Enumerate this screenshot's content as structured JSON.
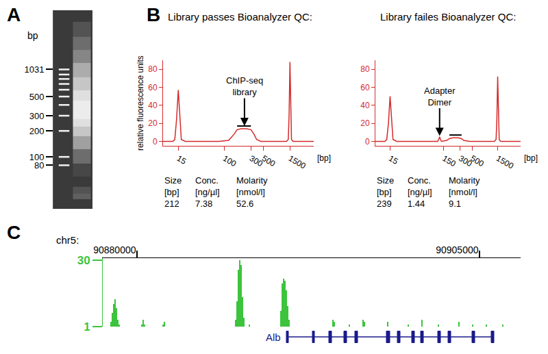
{
  "chart_data": [
    {
      "panel": "A",
      "type": "gel",
      "ylabel": "bp",
      "log": "y",
      "tick_labels": "y",
      "ylim": [
        25,
        5000
      ],
      "yticks": [
        1031,
        500,
        300,
        200,
        100,
        80
      ],
      "ladder": [
        1031,
        900,
        800,
        700,
        600,
        500,
        400,
        300,
        200,
        100,
        80
      ],
      "smear": {
        "bp": [
          30,
          35,
          40,
          50,
          70,
          100,
          150,
          200,
          250,
          300,
          400,
          500,
          700,
          1000,
          1500,
          2000,
          3000
        ],
        "intensity": [
          0.15,
          0.3,
          0.25,
          0.15,
          0.2,
          0.35,
          0.55,
          0.7,
          0.8,
          0.85,
          0.85,
          0.8,
          0.7,
          0.6,
          0.45,
          0.35,
          0.25
        ]
      }
    },
    {
      "panel": "B",
      "type": "line",
      "title": "Library passes Bioanalyzer QC:",
      "ylabel": "relative fluorescence units",
      "xlabel": "[bp]",
      "log": "x",
      "color": "#d42a2a",
      "xlim": [
        8,
        4000
      ],
      "xticks": [
        15,
        100,
        300,
        500,
        1500
      ],
      "ylim": [
        -5,
        90
      ],
      "yticks": [
        0,
        20,
        40,
        60,
        80
      ],
      "x": [
        8,
        12,
        13,
        14,
        15,
        16,
        17,
        20,
        40,
        80,
        120,
        150,
        170,
        200,
        250,
        300,
        340,
        380,
        450,
        700,
        1000,
        1300,
        1400,
        1450,
        1500,
        1550,
        1600,
        1700,
        4000
      ],
      "values": [
        0,
        0,
        2,
        25,
        57,
        25,
        2,
        0,
        0,
        0,
        1,
        8,
        13,
        14,
        14,
        13,
        8,
        2,
        0,
        0,
        0,
        0,
        2,
        30,
        88,
        30,
        2,
        0,
        0
      ],
      "annotation": {
        "text": [
          "ChIP-seq",
          "library"
        ],
        "x": 230,
        "y": 17
      },
      "region": {
        "x": [
          170,
          300
        ],
        "y": 17
      },
      "table": {
        "headers": [
          [
            "Size",
            "[bp]"
          ],
          [
            "Conc.",
            "[ng/µl]"
          ],
          [
            "Molarity",
            "[nmol/l]"
          ]
        ],
        "values": [
          212,
          7.38,
          52.6
        ]
      }
    },
    {
      "type": "line",
      "title": "Library failes Bioanalyzer QC:",
      "xlabel": "[bp]",
      "log": "x",
      "color": "#d42a2a",
      "xlim": [
        8,
        4000
      ],
      "xticks": [
        15,
        150,
        300,
        500,
        1500
      ],
      "ylim": [
        -5,
        90
      ],
      "yticks": [
        0,
        20,
        40,
        60,
        80
      ],
      "x": [
        8,
        12,
        13,
        14,
        15,
        16,
        17,
        20,
        40,
        80,
        115,
        120,
        125,
        130,
        135,
        170,
        190,
        220,
        280,
        320,
        350,
        450,
        1000,
        1300,
        1400,
        1450,
        1500,
        1550,
        1600,
        1700,
        4000
      ],
      "values": [
        0,
        0,
        2,
        20,
        50,
        20,
        2,
        0,
        0,
        0,
        0,
        2,
        5,
        2,
        0,
        1,
        3,
        4,
        4,
        3,
        1,
        0,
        0,
        0,
        2,
        25,
        72,
        25,
        2,
        0,
        0
      ],
      "annotation": {
        "text": [
          "Adapter",
          "Dimer"
        ],
        "x": 125,
        "y": 6
      },
      "region": {
        "x": [
          190,
          320
        ],
        "y": 7
      },
      "table": {
        "headers": [
          [
            "Size",
            "[bp]"
          ],
          [
            "Conc.",
            "[ng/µl]"
          ],
          [
            "Molarity",
            "[nmol/l]"
          ]
        ],
        "values": [
          239,
          1.44,
          9.1
        ]
      }
    },
    {
      "panel": "C",
      "type": "bar",
      "chrom_label": "chr5:",
      "color": "#3cc43c",
      "xlim": [
        90877500,
        90908000
      ],
      "xticks": [
        90880000,
        90905000
      ],
      "ylim": [
        1,
        31
      ],
      "yticks": [
        1,
        30
      ],
      "x": [
        90878100,
        90878200,
        90878300,
        90878400,
        90878500,
        90878600,
        90878700,
        90880350,
        90880450,
        90880550,
        90881900,
        90882000,
        90887200,
        90887300,
        90887400,
        90887500,
        90887600,
        90887700,
        90887800,
        90888200,
        90890500,
        90890600,
        90890700,
        90890800,
        90890900,
        90891000,
        90891100,
        90894300,
        90894400,
        90895500,
        90896500,
        90896600,
        90898300,
        90899800,
        90900800,
        90902000,
        90903500,
        90904500,
        90905500,
        90906700
      ],
      "values": [
        3,
        7,
        11,
        13,
        9,
        4,
        2,
        2,
        4,
        2,
        2,
        3,
        4,
        12,
        26,
        30,
        28,
        14,
        5,
        2,
        8,
        20,
        22,
        21,
        17,
        10,
        4,
        4,
        3,
        2,
        4,
        3,
        3,
        2,
        4,
        2,
        3,
        2,
        2,
        2
      ],
      "gene": {
        "name": "Alb",
        "color": "#1a1a8c",
        "start": 90890900,
        "end": 90906050,
        "exons": [
          [
            90890900,
            90891050
          ],
          [
            90892800,
            90892950
          ],
          [
            90894000,
            90894200
          ],
          [
            90895100,
            90895300
          ],
          [
            90895900,
            90896100
          ],
          [
            90898200,
            90898450
          ],
          [
            90899000,
            90899200
          ],
          [
            90900050,
            90900250
          ],
          [
            90900700,
            90900900
          ],
          [
            90901950,
            90902150
          ],
          [
            90902700,
            90902900
          ],
          [
            90904450,
            90904650
          ],
          [
            90905850,
            90906050
          ]
        ]
      }
    }
  ]
}
